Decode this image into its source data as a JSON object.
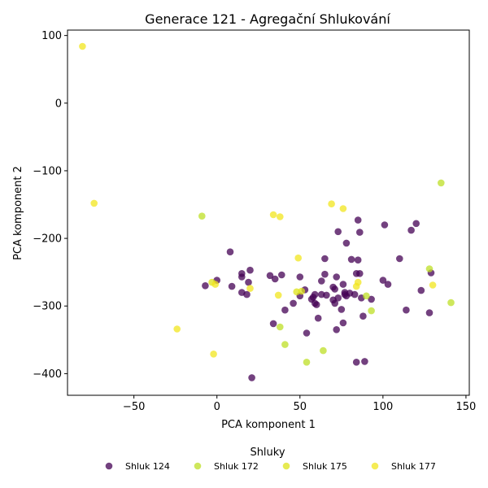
{
  "chart_data": {
    "type": "scatter",
    "title": "Generace 121 - Agregační Shlukování",
    "xlabel": "PCA komponent 1",
    "ylabel": "PCA komponent 2",
    "xlim": [
      -90,
      152
    ],
    "ylim": [
      -432,
      108
    ],
    "xticks": [
      -50,
      0,
      50,
      100,
      150
    ],
    "yticks": [
      100,
      0,
      -100,
      -200,
      -300,
      -400
    ],
    "grid": false,
    "legend": {
      "title": "Shluky",
      "placement": "bottom-center"
    },
    "series": [
      {
        "name": "Shluk 124",
        "color": "#440154",
        "points": [
          [
            8,
            -220
          ],
          [
            -7,
            -270
          ],
          [
            0,
            -262
          ],
          [
            9,
            -271
          ],
          [
            15,
            -252
          ],
          [
            15,
            -257
          ],
          [
            15,
            -280
          ],
          [
            19,
            -265
          ],
          [
            20,
            -247
          ],
          [
            18,
            -283
          ],
          [
            21,
            -406
          ],
          [
            32,
            -255
          ],
          [
            35,
            -260
          ],
          [
            34,
            -326
          ],
          [
            39,
            -254
          ],
          [
            41,
            -306
          ],
          [
            46,
            -296
          ],
          [
            50,
            -285
          ],
          [
            50,
            -257
          ],
          [
            53,
            -276
          ],
          [
            54,
            -340
          ],
          [
            57,
            -290
          ],
          [
            58,
            -287
          ],
          [
            59,
            -283
          ],
          [
            59,
            -296
          ],
          [
            60,
            -298
          ],
          [
            61,
            -318
          ],
          [
            63,
            -283
          ],
          [
            63,
            -263
          ],
          [
            65,
            -253
          ],
          [
            65,
            -230
          ],
          [
            66,
            -284
          ],
          [
            70,
            -272
          ],
          [
            70,
            -291
          ],
          [
            71,
            -296
          ],
          [
            71,
            -275
          ],
          [
            72,
            -257
          ],
          [
            72,
            -335
          ],
          [
            73,
            -190
          ],
          [
            73,
            -288
          ],
          [
            75,
            -305
          ],
          [
            76,
            -325
          ],
          [
            76,
            -268
          ],
          [
            77,
            -280
          ],
          [
            77,
            -283
          ],
          [
            78,
            -285
          ],
          [
            78,
            -207
          ],
          [
            80,
            -281
          ],
          [
            81,
            -231
          ],
          [
            83,
            -283
          ],
          [
            84,
            -252
          ],
          [
            85,
            -173
          ],
          [
            85,
            -232
          ],
          [
            86,
            -191
          ],
          [
            86,
            -252
          ],
          [
            87,
            -288
          ],
          [
            88,
            -315
          ],
          [
            84,
            -383
          ],
          [
            89,
            -382
          ],
          [
            93,
            -290
          ],
          [
            100,
            -262
          ],
          [
            101,
            -180
          ],
          [
            103,
            -268
          ],
          [
            110,
            -230
          ],
          [
            114,
            -306
          ],
          [
            117,
            -188
          ],
          [
            120,
            -178
          ],
          [
            123,
            -277
          ],
          [
            128,
            -310
          ],
          [
            129,
            -251
          ]
        ]
      },
      {
        "name": "Shluk 172",
        "color": "#bddf26",
        "points": [
          [
            -9,
            -167
          ],
          [
            90,
            -285
          ],
          [
            93,
            -307
          ],
          [
            128,
            -245
          ],
          [
            135,
            -118
          ],
          [
            141,
            -295
          ],
          [
            38,
            -331
          ],
          [
            41,
            -357
          ],
          [
            54,
            -383
          ],
          [
            64,
            -366
          ]
        ]
      },
      {
        "name": "Shluk 175",
        "color": "#dde318",
        "points": [
          [
            -3,
            -265
          ],
          [
            48,
            -279
          ],
          [
            51,
            -278
          ]
        ]
      },
      {
        "name": "Shluk 177",
        "color": "#f1e51d",
        "points": [
          [
            -81,
            84
          ],
          [
            -74,
            -148
          ],
          [
            -24,
            -334
          ],
          [
            -2,
            -371
          ],
          [
            -1,
            -268
          ],
          [
            20,
            -274
          ],
          [
            34,
            -165
          ],
          [
            37,
            -284
          ],
          [
            38,
            -168
          ],
          [
            49,
            -229
          ],
          [
            69,
            -149
          ],
          [
            76,
            -156
          ],
          [
            84,
            -271
          ],
          [
            85,
            -265
          ],
          [
            130,
            -269
          ]
        ]
      }
    ]
  }
}
